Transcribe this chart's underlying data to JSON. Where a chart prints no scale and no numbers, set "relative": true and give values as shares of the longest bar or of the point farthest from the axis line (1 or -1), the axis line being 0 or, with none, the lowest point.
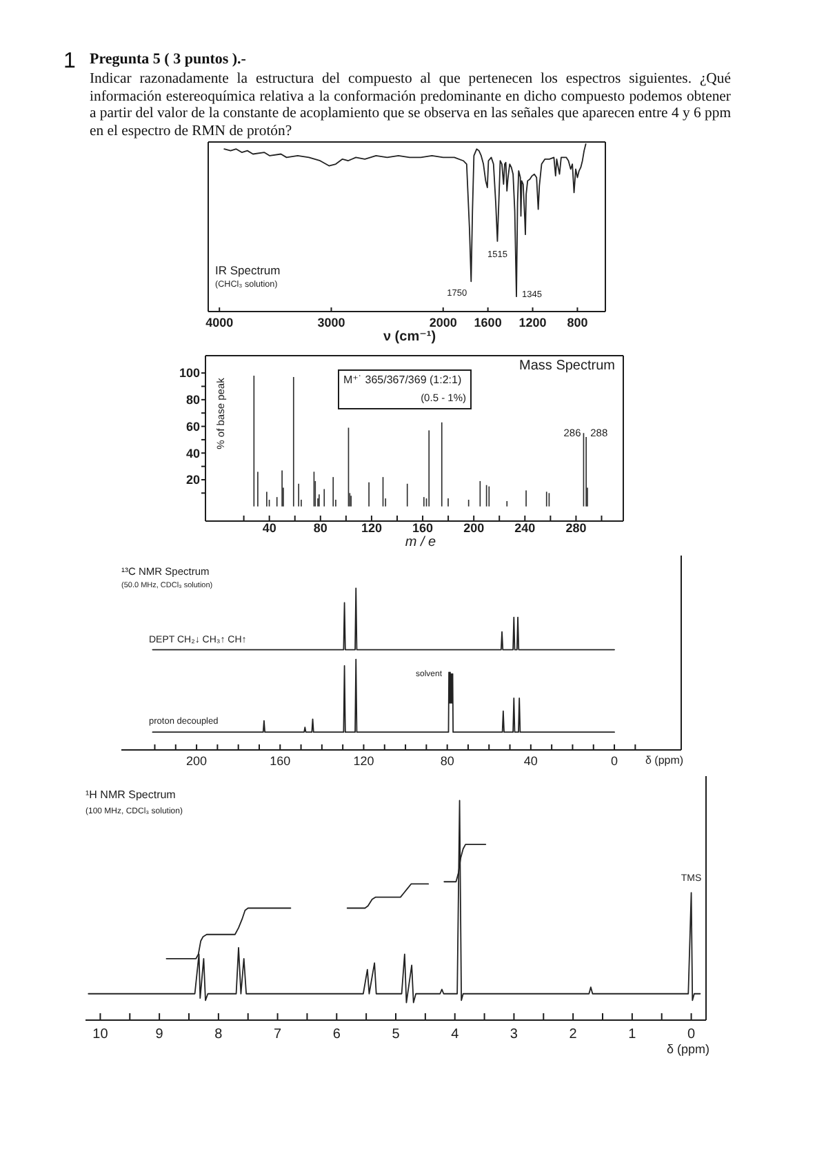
{
  "chart_data": [
    {
      "type": "other",
      "title": "Pregunta 5 ( 3 puntos ).-",
      "annotations": [
        "1",
        "Indicar razonadamente la estructura del compuesto al que pertenecen los espectros siguientes. ¿Qué información estereoquímica relativa a la conformación predominante en dicho compuesto podemos obtener a partir del valor de la constante de acoplamiento que se observa en las señales que aparecen entre 4 y 6 ppm en el espectro de RMN de protón?"
      ]
    },
    {
      "type": "line",
      "title": "IR Spectrum",
      "subtitle": "(CHCl₃ solution)",
      "xlabel": "ν (cm⁻¹)",
      "relative": true,
      "color": "#222222",
      "x": [
        3957,
        3900,
        3850,
        3800,
        3750,
        3700,
        3600,
        3550,
        3450,
        3400,
        3300,
        3200,
        3100,
        3020,
        2960,
        2900,
        2850,
        2780,
        2700,
        2600,
        2500,
        2400,
        2300,
        2200,
        2100,
        2000,
        1900,
        1820,
        1790,
        1765,
        1750,
        1738,
        1725,
        1700,
        1680,
        1660,
        1640,
        1620,
        1605,
        1595,
        1570,
        1550,
        1530,
        1515,
        1500,
        1490,
        1475,
        1460,
        1450,
        1440,
        1430,
        1420,
        1405,
        1390,
        1375,
        1360,
        1345,
        1335,
        1325,
        1310,
        1305,
        1298,
        1285,
        1270,
        1265,
        1258,
        1245,
        1225,
        1205,
        1185,
        1165,
        1150,
        1140,
        1120,
        1090,
        1050,
        1010,
        995,
        985,
        960,
        945,
        900,
        880,
        860,
        845,
        830,
        815,
        800,
        785,
        770,
        755,
        740,
        725
      ],
      "values": [
        0.97,
        0.96,
        0.97,
        0.95,
        0.96,
        0.94,
        0.95,
        0.93,
        0.94,
        0.92,
        0.93,
        0.92,
        0.9,
        0.87,
        0.88,
        0.91,
        0.9,
        0.92,
        0.91,
        0.93,
        0.92,
        0.93,
        0.92,
        0.92,
        0.93,
        0.92,
        0.92,
        0.9,
        0.88,
        0.5,
        0.18,
        0.6,
        0.93,
        0.97,
        0.96,
        0.93,
        0.88,
        0.78,
        0.74,
        0.9,
        0.92,
        0.88,
        0.65,
        0.42,
        0.7,
        0.9,
        0.88,
        0.76,
        0.88,
        0.89,
        0.72,
        0.8,
        0.88,
        0.86,
        0.82,
        0.6,
        0.09,
        0.65,
        0.84,
        0.8,
        0.57,
        0.78,
        0.76,
        0.55,
        0.46,
        0.7,
        0.78,
        0.79,
        0.81,
        0.82,
        0.8,
        0.61,
        0.75,
        0.88,
        0.91,
        0.91,
        0.92,
        0.81,
        0.91,
        0.82,
        0.92,
        0.92,
        0.9,
        0.85,
        0.88,
        0.71,
        0.85,
        0.8,
        0.84,
        0.86,
        0.9,
        0.96,
        1.0
      ],
      "xlim": [
        4100,
        550
      ],
      "xticks": [
        4000,
        3000,
        2000,
        1600,
        1200,
        800
      ],
      "annotations": [
        {
          "text": "1750",
          "x": 1750,
          "y": 0.18
        },
        {
          "text": "1515",
          "x": 1515,
          "y": 0.42
        },
        {
          "text": "1345",
          "x": 1345,
          "y": 0.09
        }
      ]
    },
    {
      "type": "bar",
      "title": "Mass Spectrum",
      "xlabel": "m / e",
      "ylabel": "% of base peak",
      "color": "#2e2e2e",
      "x": [
        28,
        31,
        38,
        40,
        46,
        50,
        51,
        59,
        63,
        65,
        75,
        76,
        78,
        79,
        83,
        90,
        92,
        102,
        103,
        104,
        118,
        129,
        131,
        148,
        161,
        163,
        165,
        175,
        180,
        196,
        205,
        210,
        212,
        226,
        241,
        257,
        259,
        286,
        288,
        289
      ],
      "values": [
        98,
        26,
        11,
        5,
        7,
        27,
        14,
        97,
        17,
        5,
        26,
        19,
        6,
        9,
        13,
        22,
        5,
        59,
        10,
        8,
        18,
        22,
        6,
        17,
        7,
        6,
        57,
        63,
        6,
        5,
        19,
        16,
        15,
        4,
        12,
        11,
        10,
        55,
        52,
        14
      ],
      "xlim": [
        -10,
        317
      ],
      "xticks": [
        {
          "value": 20,
          "label": null
        },
        40,
        {
          "value": 60,
          "label": null
        },
        80,
        {
          "value": 100,
          "label": null
        },
        120,
        {
          "value": 140,
          "label": null
        },
        160,
        {
          "value": 180,
          "label": null
        },
        200,
        {
          "value": 220,
          "label": null
        },
        240,
        {
          "value": 260,
          "label": null
        },
        280,
        {
          "value": 300,
          "label": null
        }
      ],
      "ylim": [
        -11,
        113
      ],
      "yticks": [
        {
          "value": 10,
          "label": null
        },
        20,
        {
          "value": 30,
          "label": null
        },
        40,
        {
          "value": 50,
          "label": null
        },
        60,
        {
          "value": 70,
          "label": null
        },
        80,
        {
          "value": 90,
          "label": null
        },
        100
      ],
      "annotations": [
        "M⁺˙ 365/367/369 (1:2:1)",
        "(0.5 - 1%)",
        {
          "text": "286",
          "x": 286,
          "y": 55
        },
        {
          "text": "288",
          "x": 288,
          "y": 52
        }
      ]
    },
    {
      "type": "line",
      "title": "¹³C NMR Spectrum",
      "subtitle": "(50.0 MHz, CDCl₃ solution)",
      "xlabel": "δ (ppm)",
      "relative": true,
      "xlim": [
        236,
        -32
      ],
      "xticks": [
        {
          "value": 220,
          "label": null
        },
        {
          "value": 210,
          "label": null
        },
        200,
        {
          "value": 190,
          "label": null
        },
        {
          "value": 180,
          "label": null
        },
        {
          "value": 170,
          "label": null
        },
        160,
        {
          "value": 150,
          "label": null
        },
        {
          "value": 140,
          "label": null
        },
        {
          "value": 130,
          "label": null
        },
        120,
        {
          "value": 110,
          "label": null
        },
        {
          "value": 100,
          "label": null
        },
        {
          "value": 90,
          "label": null
        },
        80,
        {
          "value": 70,
          "label": null
        },
        {
          "value": 60,
          "label": null
        },
        {
          "value": 50,
          "label": null
        },
        40,
        {
          "value": 30,
          "label": null
        },
        {
          "value": 20,
          "label": null
        },
        {
          "value": 10,
          "label": null
        },
        0,
        {
          "value": -10,
          "label": null
        }
      ],
      "series": [
        {
          "name": "DEPT CH₂↓ CH₃↑ CH↑",
          "color": "#222222",
          "x": [
            221,
            129.6,
            129.2,
            128.8,
            124.1,
            123.7,
            123.3,
            54.2,
            53.8,
            53.4,
            48.5,
            48.1,
            47.7,
            46.6,
            46.2,
            45.8,
            0
          ],
          "values": [
            0.62,
            0.62,
            0.91,
            0.62,
            0.62,
            1,
            0.62,
            0.62,
            0.73,
            0.62,
            0.62,
            0.82,
            0.62,
            0.62,
            0.82,
            0.62,
            0.62
          ]
        },
        {
          "name": "proton decoupled",
          "color": "#222222",
          "x": [
            221,
            168.1,
            167.7,
            167.3,
            148.5,
            148.1,
            147.7,
            144.8,
            144.4,
            144.0,
            129.6,
            129.2,
            128.8,
            124.1,
            123.7,
            123.3,
            79.4,
            79.2,
            78.9,
            78.6,
            78.3,
            78.0,
            77.7,
            77.4,
            77.2,
            53.6,
            53.2,
            52.8,
            48.5,
            48.1,
            47.7,
            45.9,
            45.5,
            45.1,
            0
          ],
          "values": [
            0.11,
            0.11,
            0.18,
            0.11,
            0.11,
            0.14,
            0.11,
            0.11,
            0.19,
            0.11,
            0.11,
            0.52,
            0.11,
            0.11,
            0.56,
            0.11,
            0.11,
            0.48,
            0.29,
            0.48,
            0.29,
            0.47,
            0.29,
            0.47,
            0.11,
            0.11,
            0.24,
            0.11,
            0.11,
            0.32,
            0.11,
            0.11,
            0.32,
            0.11,
            0.11
          ]
        }
      ],
      "annotations": [
        {
          "text": "solvent",
          "x": 79.2,
          "y": 0.48
        }
      ]
    },
    {
      "type": "line",
      "title": "¹H NMR Spectrum",
      "subtitle": "(100 MHz, CDCl₃ solution)",
      "xlabel": "δ (ppm)",
      "relative": true,
      "xlim": [
        10.25,
        -0.25
      ],
      "xticks": [
        10,
        {
          "value": 9.5,
          "label": null
        },
        9,
        {
          "value": 8.5,
          "label": null
        },
        8,
        {
          "value": 7.5,
          "label": null
        },
        7,
        {
          "value": 6.5,
          "label": null
        },
        6,
        {
          "value": 5.5,
          "label": null
        },
        5,
        {
          "value": 4.5,
          "label": null
        },
        4,
        {
          "value": 3.5,
          "label": null
        },
        3,
        {
          "value": 2.5,
          "label": null
        },
        2,
        {
          "value": 1.5,
          "label": null
        },
        1,
        {
          "value": 0.5,
          "label": null
        },
        0
      ],
      "series": [
        {
          "color": "#222222",
          "x": [
            10.2,
            8.4,
            8.33,
            8.31,
            8.25,
            8.22,
            8.18,
            7.7,
            7.66,
            7.62,
            7.57,
            7.53,
            5.55,
            5.48,
            5.45,
            5.36,
            5.33,
            4.9,
            4.85,
            4.82,
            4.73,
            4.7,
            4.66,
            4.25,
            4.22,
            4.19,
            3.96,
            3.92,
            3.89,
            3.86,
            1.73,
            1.7,
            1.67,
            0.05,
            0.0,
            -0.02,
            -0.05,
            -0.15
          ],
          "values": [
            0.12,
            0.12,
            0.3,
            0.1,
            0.28,
            0.09,
            0.12,
            0.12,
            0.33,
            0.12,
            0.28,
            0.12,
            0.12,
            0.23,
            0.12,
            0.26,
            0.12,
            0.12,
            0.3,
            0.08,
            0.25,
            0.08,
            0.12,
            0.12,
            0.14,
            0.12,
            0.12,
            1,
            0.09,
            0.12,
            0.12,
            0.15,
            0.12,
            0.12,
            0.58,
            0.09,
            0.12,
            0.12
          ]
        },
        {
          "color": "#222222",
          "x": [
            8.88,
            8.38,
            8.34,
            8.3,
            8.26,
            8.2,
            7.72,
            7.66,
            7.6,
            7.55,
            7.5,
            6.78
          ],
          "values": [
            0.28,
            0.28,
            0.3,
            0.36,
            0.38,
            0.39,
            0.39,
            0.42,
            0.46,
            0.5,
            0.51,
            0.51
          ]
        },
        {
          "color": "#222222",
          "x": [
            5.82,
            5.52,
            5.47,
            5.4,
            5.34,
            4.92,
            4.86,
            4.8,
            4.74,
            4.45
          ],
          "values": [
            0.51,
            0.51,
            0.52,
            0.55,
            0.56,
            0.56,
            0.58,
            0.6,
            0.62,
            0.62
          ]
        },
        {
          "color": "#222222",
          "x": [
            4.18,
            3.98,
            3.94,
            3.9,
            3.86,
            3.82,
            3.48
          ],
          "values": [
            0.63,
            0.63,
            0.67,
            0.74,
            0.78,
            0.8,
            0.8
          ]
        }
      ],
      "annotations": [
        {
          "text": "TMS",
          "x": 0,
          "y": 0.58
        }
      ]
    }
  ]
}
